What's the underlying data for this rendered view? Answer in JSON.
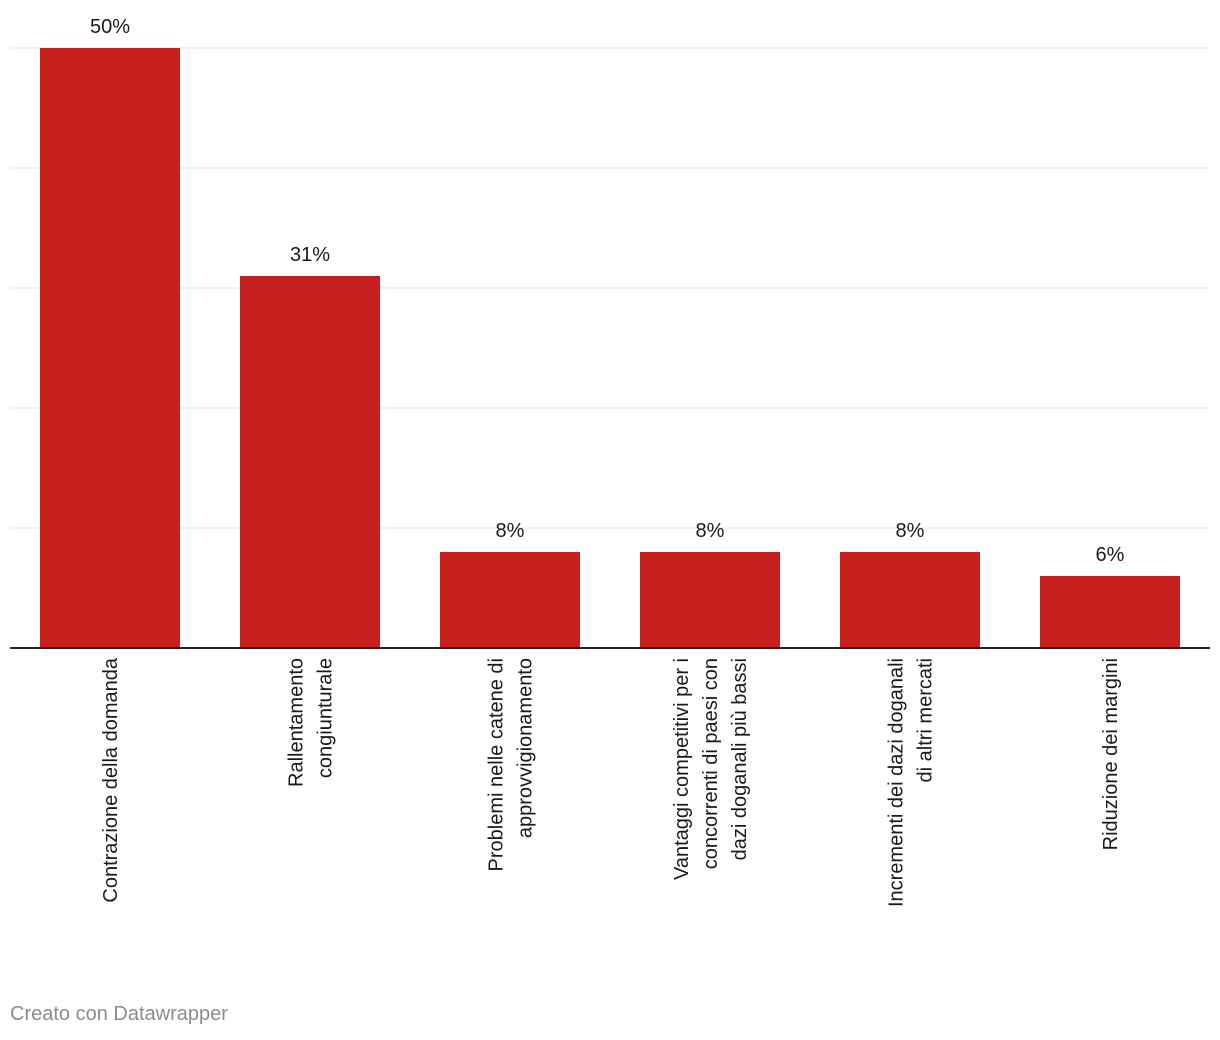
{
  "chart_data": {
    "type": "bar",
    "categories": [
      [
        "Contrazione della domanda"
      ],
      [
        "Rallentamento",
        "congiunturale"
      ],
      [
        "Problemi nelle catene di",
        "approvvigionamento"
      ],
      [
        "Vantaggi competitivi per i",
        "concorrenti di paesi con",
        "dazi doganali più bassi"
      ],
      [
        "Incrementi dei dazi doganali",
        "di altri mercati"
      ],
      [
        "Riduzione dei margini"
      ]
    ],
    "values": [
      50,
      31,
      8,
      8,
      8,
      6
    ],
    "value_labels": [
      "50%",
      "31%",
      "8%",
      "8%",
      "8%",
      "6%"
    ],
    "ylim": [
      0,
      50
    ],
    "grid": true,
    "bar_color": "#c81e1e"
  },
  "footer": {
    "credit": "Creato con Datawrapper"
  }
}
